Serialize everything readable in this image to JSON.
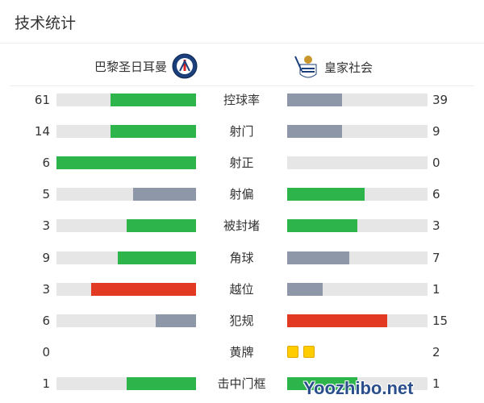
{
  "title": "技术统计",
  "home_team": {
    "name": "巴黎圣日耳曼",
    "logo": "psg-crest"
  },
  "away_team": {
    "name": "皇家社会",
    "logo": "real-sociedad-crest"
  },
  "colors": {
    "green": "#2db44a",
    "gray": "#8e97a8",
    "red": "#e23a22",
    "track": "#e6e6e6",
    "yellow_card": "#ffcc00"
  },
  "stats": [
    {
      "label": "控球率",
      "home": "61",
      "away": "39",
      "home_frac": 0.61,
      "away_frac": 0.39,
      "home_color": "green",
      "away_color": "gray"
    },
    {
      "label": "射门",
      "home": "14",
      "away": "9",
      "home_frac": 0.61,
      "away_frac": 0.39,
      "home_color": "green",
      "away_color": "gray"
    },
    {
      "label": "射正",
      "home": "6",
      "away": "0",
      "home_frac": 1,
      "away_frac": 0,
      "home_color": "green",
      "away_color": "gray"
    },
    {
      "label": "射偏",
      "home": "5",
      "away": "6",
      "home_frac": 0.45,
      "away_frac": 0.55,
      "home_color": "gray",
      "away_color": "green"
    },
    {
      "label": "被封堵",
      "home": "3",
      "away": "3",
      "home_frac": 0.5,
      "away_frac": 0.5,
      "home_color": "green",
      "away_color": "green"
    },
    {
      "label": "角球",
      "home": "9",
      "away": "7",
      "home_frac": 0.56,
      "away_frac": 0.44,
      "home_color": "green",
      "away_color": "gray"
    },
    {
      "label": "越位",
      "home": "3",
      "away": "1",
      "home_frac": 0.75,
      "away_frac": 0.25,
      "home_color": "red",
      "away_color": "gray"
    },
    {
      "label": "犯规",
      "home": "6",
      "away": "15",
      "home_frac": 0.29,
      "away_frac": 0.71,
      "home_color": "gray",
      "away_color": "red"
    },
    {
      "label": "黄牌",
      "home": "0",
      "away": "2",
      "cards": true
    },
    {
      "label": "击中门框",
      "home": "1",
      "away": "1",
      "home_frac": 0.5,
      "away_frac": 0.5,
      "home_color": "green",
      "away_color": "green"
    }
  ],
  "watermark": "Yoozhibo.net"
}
